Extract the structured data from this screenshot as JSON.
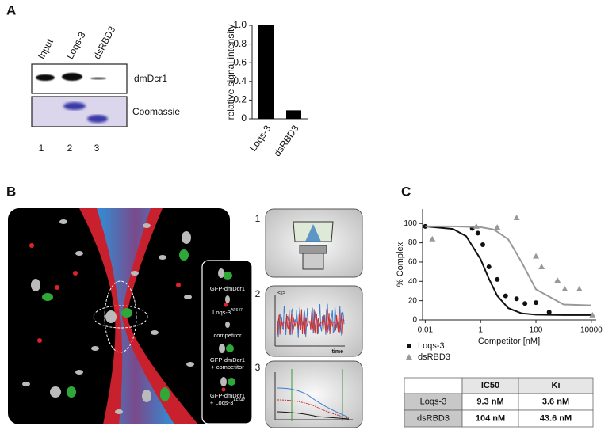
{
  "panel_labels": [
    "A",
    "B",
    "C"
  ],
  "gel": {
    "lanes": [
      "Input",
      "Loqs-3",
      "dsRBD3"
    ],
    "blots": [
      "dmDcr1",
      "Coomassie"
    ],
    "lane_numbers": [
      "1",
      "2",
      "3"
    ]
  },
  "chart_data": [
    {
      "type": "bar",
      "ylabel": "relative signal intensity",
      "categories": [
        "Loqs-3",
        "dsRBD3"
      ],
      "values": [
        1,
        0.09
      ],
      "color": "#000000",
      "ylim": [
        0,
        1
      ],
      "yticks": [
        0,
        0.2,
        0.4,
        0.6,
        0.8,
        {
          "value": 1,
          "label": "1.0"
        }
      ]
    },
    {
      "type": "scatter",
      "ylabel": "% Complex",
      "xlabel": "Competitor [nM]",
      "xscale": "log",
      "xlim": [
        0.008,
        15000
      ],
      "xticks": [
        {
          "value": 0.01,
          "label": "0,01"
        },
        1,
        100,
        10000
      ],
      "ylim": [
        0,
        115
      ],
      "yticks": [
        0,
        20,
        40,
        60,
        80,
        100
      ],
      "legend": "bottom-left",
      "series": [
        {
          "name": "Loqs-3",
          "color": "#111111",
          "marker": "circle",
          "x": [
            0.01,
            0.5,
            0.8,
            1.2,
            2,
            4,
            8,
            20,
            40,
            100,
            300
          ],
          "values": [
            97,
            95,
            90,
            78,
            55,
            42,
            25,
            22,
            17,
            18,
            8
          ],
          "fit_x": [
            0.01,
            0.1,
            0.3,
            1,
            2,
            4,
            10,
            30,
            100,
            1000,
            10000
          ],
          "fit_values": [
            97,
            94.4,
            86.9,
            62.9,
            42.6,
            25.1,
            12.2,
            6.8,
            5.4,
            5.0,
            5.0
          ]
        },
        {
          "name": "dsRBD3",
          "color": "#999999",
          "marker": "triangle",
          "x": [
            0.018,
            0.7,
            4,
            20,
            100,
            160,
            600,
            1100,
            3700,
            11000
          ],
          "values": [
            84,
            97,
            96,
            106,
            66,
            55,
            41,
            32,
            32,
            5
          ],
          "fit_x": [
            0.01,
            0.1,
            1,
            3,
            10,
            30,
            100,
            1000,
            10000
          ],
          "fit_values": [
            97,
            97,
            96.2,
            93.8,
            83.6,
            60.1,
            31.7,
            16.0,
            15.1
          ]
        }
      ]
    }
  ],
  "diagram": {
    "steps": [
      "1",
      "2",
      "3"
    ],
    "trace_axes": [
      "<I>",
      "time"
    ],
    "legend": [
      {
        "lines": [
          "GFP-dmDcr1"
        ]
      },
      {
        "lines": [
          "Loqs-3"
        ],
        "sup": "AF647"
      },
      {
        "lines": [
          "competitor"
        ]
      },
      {
        "lines": [
          "GFP-dmDcr1",
          "+ competitor"
        ]
      },
      {
        "lines": [
          "GFP-dmDcr1",
          "+ Loqs-3"
        ],
        "sup": "AF647"
      }
    ]
  },
  "table": {
    "header": [
      "IC50",
      "Ki"
    ],
    "rows": [
      [
        "Loqs-3",
        "9.3 nM",
        "3.6 nM"
      ],
      [
        "dsRBD3",
        "104 nM",
        "43.6 nM"
      ]
    ]
  }
}
